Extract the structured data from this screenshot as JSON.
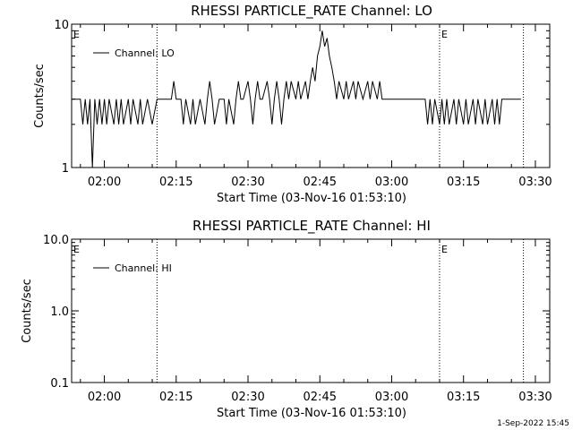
{
  "chart_data": [
    {
      "type": "line",
      "title": "RHESSI PARTICLE_RATE Channel: LO",
      "xlabel": "Start Time (03-Nov-16 01:53:10)",
      "ylabel": "Counts/sec",
      "y_scale": "log",
      "ylim": [
        1,
        10
      ],
      "y_ticks": [
        "1",
        "10"
      ],
      "xlim": [
        "01:53:10",
        "03:33:00"
      ],
      "x_ticks": [
        "02:00",
        "02:15",
        "02:30",
        "02:45",
        "03:00",
        "03:15",
        "03:30"
      ],
      "legend": "top-left",
      "series": [
        {
          "name": "Channel: LO",
          "points": [
            [
              "01:53:10",
              3
            ],
            [
              "01:55:00",
              3
            ],
            [
              "01:55:30",
              2
            ],
            [
              "01:56:00",
              3
            ],
            [
              "01:56:30",
              2
            ],
            [
              "01:57:00",
              3
            ],
            [
              "01:57:30",
              1
            ],
            [
              "01:58:00",
              3
            ],
            [
              "01:58:30",
              2
            ],
            [
              "01:59:00",
              3
            ],
            [
              "01:59:30",
              2
            ],
            [
              "02:00:00",
              3
            ],
            [
              "02:00:30",
              2
            ],
            [
              "02:01:00",
              3
            ],
            [
              "02:02:00",
              2
            ],
            [
              "02:02:30",
              3
            ],
            [
              "02:03:00",
              2
            ],
            [
              "02:03:30",
              3
            ],
            [
              "02:04:00",
              2
            ],
            [
              "02:05:00",
              3
            ],
            [
              "02:05:30",
              2
            ],
            [
              "02:06:00",
              3
            ],
            [
              "02:07:00",
              2
            ],
            [
              "02:07:30",
              3
            ],
            [
              "02:08:00",
              2
            ],
            [
              "02:09:00",
              3
            ],
            [
              "02:10:00",
              2
            ],
            [
              "02:11:00",
              3
            ],
            [
              "02:14:00",
              3
            ],
            [
              "02:14:30",
              4
            ],
            [
              "02:15:00",
              3
            ],
            [
              "02:16:00",
              3
            ],
            [
              "02:16:30",
              2
            ],
            [
              "02:17:00",
              3
            ],
            [
              "02:18:00",
              2
            ],
            [
              "02:18:30",
              3
            ],
            [
              "02:19:00",
              2
            ],
            [
              "02:20:00",
              3
            ],
            [
              "02:21:00",
              2
            ],
            [
              "02:21:30",
              3
            ],
            [
              "02:22:00",
              4
            ],
            [
              "02:22:30",
              3
            ],
            [
              "02:23:00",
              2
            ],
            [
              "02:24:00",
              3
            ],
            [
              "02:25:00",
              3
            ],
            [
              "02:25:30",
              2
            ],
            [
              "02:26:00",
              3
            ],
            [
              "02:27:00",
              2
            ],
            [
              "02:27:30",
              3
            ],
            [
              "02:28:00",
              4
            ],
            [
              "02:28:30",
              3
            ],
            [
              "02:29:00",
              3
            ],
            [
              "02:30:00",
              4
            ],
            [
              "02:30:30",
              3
            ],
            [
              "02:31:00",
              2
            ],
            [
              "02:31:30",
              3
            ],
            [
              "02:32:00",
              4
            ],
            [
              "02:32:30",
              3
            ],
            [
              "02:33:00",
              3
            ],
            [
              "02:34:00",
              4
            ],
            [
              "02:34:30",
              3
            ],
            [
              "02:35:00",
              2
            ],
            [
              "02:35:30",
              3
            ],
            [
              "02:36:00",
              4
            ],
            [
              "02:36:30",
              3
            ],
            [
              "02:37:00",
              2
            ],
            [
              "02:37:30",
              3
            ],
            [
              "02:38:00",
              4
            ],
            [
              "02:38:30",
              3
            ],
            [
              "02:39:00",
              4
            ],
            [
              "02:40:00",
              3
            ],
            [
              "02:40:30",
              4
            ],
            [
              "02:41:00",
              3
            ],
            [
              "02:42:00",
              4
            ],
            [
              "02:42:30",
              3
            ],
            [
              "02:43:00",
              4
            ],
            [
              "02:43:30",
              5
            ],
            [
              "02:44:00",
              4
            ],
            [
              "02:44:30",
              6
            ],
            [
              "02:45:00",
              7
            ],
            [
              "02:45:30",
              9
            ],
            [
              "02:46:00",
              7
            ],
            [
              "02:46:30",
              8
            ],
            [
              "02:47:00",
              6
            ],
            [
              "02:47:30",
              5
            ],
            [
              "02:48:00",
              4
            ],
            [
              "02:48:30",
              3
            ],
            [
              "02:49:00",
              4
            ],
            [
              "02:50:00",
              3
            ],
            [
              "02:50:30",
              4
            ],
            [
              "02:51:00",
              3
            ],
            [
              "02:52:00",
              4
            ],
            [
              "02:52:30",
              3
            ],
            [
              "02:53:00",
              4
            ],
            [
              "02:54:00",
              3
            ],
            [
              "02:55:00",
              4
            ],
            [
              "02:55:30",
              3
            ],
            [
              "02:56:00",
              4
            ],
            [
              "02:57:00",
              3
            ],
            [
              "02:57:30",
              4
            ],
            [
              "02:58:00",
              3
            ],
            [
              "03:00:00",
              3
            ],
            [
              "03:01:00",
              3
            ],
            [
              "03:02:00",
              3
            ],
            [
              "03:03:00",
              3
            ],
            [
              "03:04:00",
              3
            ],
            [
              "03:05:00",
              3
            ],
            [
              "03:07:00",
              3
            ],
            [
              "03:07:30",
              2
            ],
            [
              "03:08:00",
              3
            ],
            [
              "03:08:30",
              2
            ],
            [
              "03:09:00",
              3
            ],
            [
              "03:10:00",
              2
            ],
            [
              "03:10:30",
              3
            ],
            [
              "03:11:00",
              2
            ],
            [
              "03:11:30",
              3
            ],
            [
              "03:12:00",
              2
            ],
            [
              "03:13:00",
              3
            ],
            [
              "03:13:30",
              2
            ],
            [
              "03:14:00",
              3
            ],
            [
              "03:15:00",
              2
            ],
            [
              "03:15:30",
              3
            ],
            [
              "03:16:00",
              2
            ],
            [
              "03:17:00",
              3
            ],
            [
              "03:17:30",
              2
            ],
            [
              "03:18:00",
              3
            ],
            [
              "03:19:00",
              2
            ],
            [
              "03:19:30",
              3
            ],
            [
              "03:20:00",
              2
            ],
            [
              "03:21:00",
              3
            ],
            [
              "03:21:30",
              2
            ],
            [
              "03:22:00",
              3
            ],
            [
              "03:22:30",
              2
            ],
            [
              "03:23:00",
              3
            ],
            [
              "03:24:00",
              3
            ],
            [
              "03:27:00",
              3
            ]
          ]
        }
      ],
      "markers": [
        {
          "time": "01:53:10",
          "label": "E"
        },
        {
          "time": "02:11:00",
          "label": ""
        },
        {
          "time": "03:10:00",
          "label": "E"
        },
        {
          "time": "03:27:30",
          "label": ""
        }
      ]
    },
    {
      "type": "line",
      "title": "RHESSI PARTICLE_RATE Channel: HI",
      "xlabel": "Start Time (03-Nov-16 01:53:10)",
      "ylabel": "Counts/sec",
      "y_scale": "log",
      "ylim": [
        0.1,
        10
      ],
      "y_ticks": [
        "0.1",
        "1.0",
        "10.0"
      ],
      "xlim": [
        "01:53:10",
        "03:33:00"
      ],
      "x_ticks": [
        "02:00",
        "02:15",
        "02:30",
        "02:45",
        "03:00",
        "03:15",
        "03:30"
      ],
      "legend": "top-left",
      "series": [
        {
          "name": "Channel: HI",
          "points": []
        }
      ],
      "markers": [
        {
          "time": "01:53:10",
          "label": "E"
        },
        {
          "time": "02:11:00",
          "label": ""
        },
        {
          "time": "03:10:00",
          "label": "E"
        },
        {
          "time": "03:27:30",
          "label": ""
        }
      ]
    }
  ],
  "footer": "1-Sep-2022 15:45"
}
